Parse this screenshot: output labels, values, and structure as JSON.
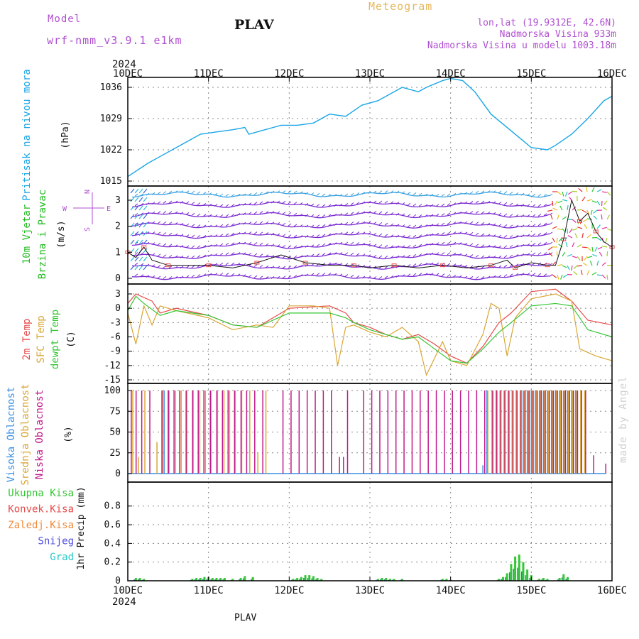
{
  "header": {
    "model_label": "Model",
    "model_name": "wrf-nmm_v3.9.1 e1km",
    "station": "PLAV",
    "product": "Meteogram",
    "lonlat": "lon,lat (19.9312E, 42.6N)",
    "elevation": "Nadmorska Visina 933m",
    "model_elevation": "Nadmorska Visina u modelu 1003.18m",
    "year_top": "2024",
    "year_bottom": "2024",
    "footer_station": "PLAV",
    "watermark": "made by Angel"
  },
  "colors": {
    "pressure": "#1aa6e6",
    "temp2m": "#e84a4a",
    "sfc_temp": "#d9a634",
    "dewpt": "#35c635",
    "high_cloud": "#3b8fe0",
    "mid_cloud": "#d9a634",
    "low_cloud": "#c01a8a",
    "total_precip": "#35c635",
    "conv_precip": "#e84a4a",
    "frz_precip": "#f08a3a",
    "snow": "#5050e0",
    "hail": "#2ac9c9",
    "title_purple": "#b050d0",
    "wind_label": "#22bb22"
  },
  "chart_data": [
    {
      "type": "line",
      "id": "pressure",
      "ylabel_title": "Pritisak na nivou mora",
      "ylabel_unit": "(hPa)",
      "ylim": [
        1015,
        1040
      ],
      "yticks": [
        "1015",
        "1022",
        "1029",
        "1036"
      ],
      "x_ticks": [
        "10DEC",
        "11DEC",
        "12DEC",
        "13DEC",
        "14DEC",
        "15DEC",
        "16DEC"
      ],
      "x_range_days": [
        0,
        6
      ],
      "series": [
        {
          "color_key": "pressure",
          "x": [
            0,
            0.25,
            0.4,
            0.6,
            0.9,
            1.1,
            1.3,
            1.45,
            1.5,
            1.7,
            1.9,
            2.1,
            2.3,
            2.5,
            2.7,
            2.9,
            3.1,
            3.3,
            3.4,
            3.5,
            3.6,
            3.7,
            3.9,
            4.0,
            4.15,
            4.3,
            4.5,
            4.7,
            4.9,
            5.0,
            5.2,
            5.3,
            5.5,
            5.7,
            5.9,
            6.0
          ],
          "y": [
            1016.0,
            1019.0,
            1020.5,
            1022.5,
            1025.5,
            1026.0,
            1026.5,
            1027.0,
            1025.5,
            1026.5,
            1027.5,
            1027.5,
            1028.0,
            1030.0,
            1029.5,
            1032.0,
            1033.0,
            1035.0,
            1036.0,
            1035.5,
            1035.0,
            1036.0,
            1037.5,
            1038.0,
            1037.5,
            1035.0,
            1030.0,
            1027.0,
            1024.0,
            1022.5,
            1022.0,
            1023.0,
            1025.5,
            1029.0,
            1033.0,
            1034.0
          ]
        }
      ]
    },
    {
      "type": "line",
      "id": "wind",
      "ylabel_title_1": "10m Vjetar",
      "ylabel_title_2": "Brzina i Pravac",
      "ylabel_unit": "(m/s)",
      "compass": {
        "north": "N",
        "south": "S",
        "west": "W",
        "east": "E"
      },
      "ylim": [
        -0.2,
        3.9
      ],
      "yticks": [
        "0",
        "1",
        "2",
        "3"
      ],
      "series": [
        {
          "name": "speed",
          "x": [
            0,
            0.1,
            0.2,
            0.3,
            0.5,
            0.8,
            1.0,
            1.3,
            1.6,
            1.9,
            2.2,
            2.5,
            2.8,
            3.0,
            3.3,
            3.6,
            3.9,
            4.2,
            4.5,
            4.7,
            4.8,
            5.0,
            5.2,
            5.3,
            5.4,
            5.5,
            5.6,
            5.7,
            5.8,
            5.9,
            6.0
          ],
          "y": [
            1.0,
            0.8,
            1.2,
            0.7,
            0.5,
            0.5,
            0.5,
            0.4,
            0.6,
            0.9,
            0.6,
            0.5,
            0.5,
            0.4,
            0.5,
            0.4,
            0.5,
            0.4,
            0.5,
            0.7,
            0.4,
            0.6,
            0.5,
            0.5,
            1.5,
            3.0,
            2.2,
            2.5,
            1.8,
            1.4,
            1.2
          ]
        }
      ]
    },
    {
      "type": "line",
      "id": "temperature",
      "ylabel_title_1": "2m Temp",
      "ylabel_title_2": "SFC Temp",
      "ylabel_title_3": "dewpt Temp",
      "ylabel_unit": "(C)",
      "ylim": [
        -15,
        4
      ],
      "yticks": [
        "-15",
        "-12",
        "-9",
        "-6",
        "-3",
        "0",
        "3"
      ],
      "series": [
        {
          "name": "2m",
          "color_key": "temp2m",
          "x": [
            0,
            0.1,
            0.3,
            0.4,
            0.6,
            1.0,
            1.3,
            1.6,
            1.8,
            2.0,
            2.3,
            2.5,
            2.7,
            2.8,
            3.0,
            3.2,
            3.4,
            3.6,
            3.8,
            4.0,
            4.2,
            4.4,
            4.6,
            4.75,
            5.0,
            5.3,
            5.5,
            5.7,
            6.0
          ],
          "y": [
            1.0,
            3.0,
            1.5,
            -1.0,
            0.0,
            -1.5,
            -3.5,
            -4.0,
            -2.0,
            0.0,
            0.3,
            0.5,
            -1.0,
            -3.0,
            -4.0,
            -5.5,
            -6.5,
            -5.5,
            -7.5,
            -10.0,
            -11.5,
            -8.0,
            -3.0,
            -1.0,
            3.5,
            4.0,
            1.5,
            -2.5,
            -3.5
          ]
        },
        {
          "name": "sfc",
          "color_key": "sfc_temp",
          "x": [
            0,
            0.1,
            0.2,
            0.3,
            0.4,
            0.6,
            1.0,
            1.3,
            1.6,
            1.8,
            2.0,
            2.3,
            2.5,
            2.6,
            2.7,
            2.8,
            3.0,
            3.2,
            3.4,
            3.6,
            3.7,
            3.9,
            4.0,
            4.2,
            4.4,
            4.5,
            4.6,
            4.7,
            4.8,
            5.0,
            5.3,
            5.5,
            5.6,
            5.8,
            6.0
          ],
          "y": [
            -1.0,
            -7.5,
            0.5,
            -3.5,
            0.5,
            -0.5,
            -2.0,
            -4.5,
            -3.5,
            -4.0,
            0.5,
            0.5,
            0.0,
            -12.0,
            -4.0,
            -3.5,
            -5.0,
            -6.0,
            -4.0,
            -7.0,
            -14.0,
            -7.0,
            -11.0,
            -12.0,
            -5.5,
            1.0,
            0.0,
            -10.0,
            -2.0,
            2.0,
            3.0,
            1.5,
            -8.5,
            -10.0,
            -11.0
          ]
        },
        {
          "name": "dewpt",
          "color_key": "dewpt",
          "x": [
            0,
            0.1,
            0.2,
            0.4,
            0.6,
            1.0,
            1.3,
            1.6,
            1.8,
            2.0,
            2.3,
            2.5,
            2.7,
            2.8,
            3.0,
            3.2,
            3.4,
            3.6,
            3.8,
            4.0,
            4.2,
            4.4,
            4.6,
            4.75,
            5.0,
            5.3,
            5.5,
            5.7,
            6.0
          ],
          "y": [
            -0.5,
            2.5,
            1.0,
            -1.5,
            -0.5,
            -1.5,
            -3.5,
            -4.0,
            -2.5,
            -1.0,
            -1.0,
            -1.0,
            -2.0,
            -3.0,
            -4.5,
            -5.5,
            -6.5,
            -6.0,
            -8.5,
            -11.0,
            -11.5,
            -8.5,
            -5.0,
            -3.0,
            0.5,
            1.0,
            0.5,
            -4.5,
            -6.0
          ]
        }
      ]
    },
    {
      "type": "bar",
      "id": "cloud",
      "ylabel_title_1": "Visoka Oblacnost",
      "ylabel_title_2": "Srednja Oblacnost",
      "ylabel_title_3": "Niska Oblacnost",
      "ylabel_unit": "(%)",
      "ylim": [
        0,
        100
      ],
      "yticks": [
        "0",
        "25",
        "50",
        "75",
        "100"
      ],
      "series": [
        {
          "name": "high",
          "color_key": "high_cloud",
          "x": [
            0.45,
            0.5,
            4.4,
            4.45,
            4.9,
            4.95,
            5.0,
            5.05,
            5.1,
            5.15,
            5.2,
            5.25,
            5.3,
            5.35,
            5.4,
            5.45,
            5.5,
            5.55
          ],
          "y": [
            100,
            100,
            10,
            100,
            100,
            100,
            100,
            100,
            100,
            100,
            100,
            100,
            100,
            100,
            100,
            100,
            100,
            100
          ]
        },
        {
          "name": "mid",
          "color_key": "mid_cloud",
          "x": [
            0.05,
            0.12,
            0.2,
            0.35,
            0.42,
            0.5,
            0.58,
            0.65,
            0.72,
            0.8,
            0.88,
            0.95,
            1.02,
            1.1,
            1.18,
            1.25,
            1.32,
            1.4,
            1.5,
            1.6,
            1.7,
            4.45,
            4.5,
            4.55,
            4.6,
            4.65,
            4.7,
            4.75,
            4.8,
            4.85,
            4.9,
            4.95,
            5.0,
            5.05,
            5.1,
            5.15,
            5.2,
            5.25,
            5.3,
            5.35,
            5.4,
            5.45,
            5.5,
            5.55,
            5.6,
            5.65
          ],
          "y": [
            100,
            20,
            100,
            38,
            100,
            100,
            100,
            100,
            100,
            100,
            100,
            100,
            100,
            100,
            100,
            100,
            100,
            100,
            100,
            25,
            100,
            100,
            100,
            100,
            100,
            100,
            100,
            100,
            100,
            100,
            100,
            100,
            100,
            100,
            100,
            100,
            100,
            100,
            100,
            100,
            100,
            100,
            100,
            100,
            100,
            100
          ]
        },
        {
          "name": "low",
          "color_key": "low_cloud",
          "x": [
            0.02,
            0.08,
            0.15,
            0.25,
            0.4,
            0.48,
            0.55,
            0.62,
            0.7,
            0.78,
            0.85,
            0.92,
            1.0,
            1.08,
            1.15,
            1.22,
            1.3,
            1.38,
            1.45,
            1.55,
            1.65,
            1.9,
            2.0,
            2.1,
            2.2,
            2.3,
            2.4,
            2.5,
            2.6,
            2.65,
            2.7,
            2.9,
            3.0,
            3.1,
            3.2,
            3.3,
            3.4,
            3.5,
            3.6,
            3.7,
            3.8,
            3.9,
            4.0,
            4.1,
            4.2,
            4.3,
            4.4,
            4.5,
            4.55,
            4.6,
            4.65,
            4.7,
            4.75,
            4.8,
            4.85,
            4.9,
            4.95,
            5.0,
            5.05,
            5.1,
            5.15,
            5.2,
            5.25,
            5.3,
            5.35,
            5.4,
            5.45,
            5.5,
            5.55,
            5.6,
            5.65,
            5.75,
            5.9
          ],
          "y": [
            100,
            100,
            100,
            100,
            100,
            100,
            100,
            100,
            100,
            100,
            100,
            100,
            100,
            100,
            100,
            100,
            100,
            100,
            100,
            100,
            100,
            100,
            100,
            100,
            100,
            100,
            100,
            100,
            20,
            20,
            100,
            100,
            100,
            100,
            100,
            100,
            100,
            100,
            100,
            100,
            100,
            100,
            100,
            100,
            100,
            100,
            100,
            100,
            100,
            100,
            100,
            100,
            100,
            100,
            100,
            100,
            100,
            100,
            100,
            100,
            100,
            100,
            100,
            100,
            100,
            100,
            100,
            100,
            100,
            100,
            100,
            22,
            12
          ]
        }
      ]
    },
    {
      "type": "bar",
      "id": "precip",
      "ylabel_unit": "1hr Precip (mm)",
      "legend": [
        {
          "label": "Ukupna Kisa",
          "color_key": "total_precip"
        },
        {
          "label": "Konvek.Kisa",
          "color_key": "conv_precip"
        },
        {
          "label": "Zaledj.Kisa",
          "color_key": "frz_precip"
        },
        {
          "label": "Snijeg",
          "color_key": "snow"
        },
        {
          "label": "Grad",
          "color_key": "hail"
        }
      ],
      "ylim": [
        0,
        1.0
      ],
      "yticks": [
        "0",
        "0.2",
        "0.4",
        "0.6",
        "0.8"
      ],
      "series": [
        {
          "name": "total",
          "color_key": "total_precip",
          "x": [
            0.1,
            0.15,
            0.2,
            0.8,
            0.85,
            0.9,
            0.95,
            1.0,
            1.05,
            1.1,
            1.15,
            1.2,
            1.3,
            1.4,
            1.45,
            1.55,
            2.05,
            2.1,
            2.15,
            2.2,
            2.25,
            2.3,
            2.35,
            2.4,
            3.1,
            3.15,
            3.2,
            3.25,
            3.3,
            3.4,
            3.9,
            3.95,
            4.0,
            4.6,
            4.65,
            4.7,
            4.75,
            4.8,
            4.85,
            4.9,
            4.95,
            5.0,
            5.1,
            5.15,
            5.2,
            5.35,
            5.4,
            5.45
          ],
          "y": [
            0.03,
            0.03,
            0.02,
            0.02,
            0.03,
            0.03,
            0.04,
            0.04,
            0.03,
            0.03,
            0.03,
            0.03,
            0.02,
            0.03,
            0.05,
            0.04,
            0.02,
            0.03,
            0.04,
            0.06,
            0.06,
            0.05,
            0.03,
            0.02,
            0.02,
            0.03,
            0.03,
            0.02,
            0.02,
            0.02,
            0.02,
            0.02,
            0.01,
            0.02,
            0.04,
            0.08,
            0.18,
            0.26,
            0.28,
            0.2,
            0.12,
            0.06,
            0.02,
            0.03,
            0.02,
            0.03,
            0.07,
            0.04
          ]
        }
      ]
    }
  ]
}
